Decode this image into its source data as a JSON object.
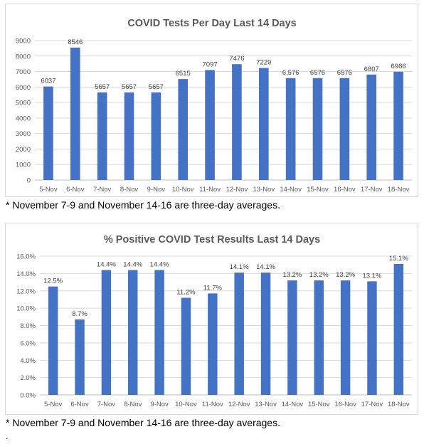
{
  "chart_data": [
    {
      "type": "bar",
      "title": "COVID Tests Per Day Last 14 Days",
      "categories": [
        "5-Nov",
        "6-Nov",
        "7-Nov",
        "8-Nov",
        "9-Nov",
        "10-Nov",
        "11-Nov",
        "12-Nov",
        "13-Nov",
        "14-Nov",
        "15-Nov",
        "16-Nov",
        "17-Nov",
        "18-Nov"
      ],
      "values": [
        6037,
        8546,
        5657,
        5657,
        5657,
        6515,
        7097,
        7476,
        7229,
        6576,
        6576,
        6576,
        6807,
        6986
      ],
      "data_labels": [
        "6037",
        "8546",
        "5657",
        "5657",
        "5657",
        "6515",
        "7097",
        "7476",
        "7229",
        "6,576",
        "6576",
        "6576",
        "6807",
        "6986"
      ],
      "yticks": [
        "0",
        "1000",
        "2000",
        "3000",
        "4000",
        "5000",
        "6000",
        "7000",
        "8000",
        "9000"
      ],
      "ylim": [
        0,
        9000
      ],
      "grid": true,
      "legend": "none",
      "bar_color": "#4472c4",
      "note": "* November 7-9 and November 14-16 are three-day averages."
    },
    {
      "type": "bar",
      "title": "% Positive COVID Test Results Last 14 Days",
      "categories": [
        "5-Nov",
        "6-Nov",
        "7-Nov",
        "8-Nov",
        "9-Nov",
        "10-Nov",
        "11-Nov",
        "12-Nov",
        "13-Nov",
        "14-Nov",
        "15-Nov",
        "16-Nov",
        "17-Nov",
        "18-Nov"
      ],
      "values": [
        12.5,
        8.7,
        14.4,
        14.4,
        14.4,
        11.2,
        11.7,
        14.1,
        14.1,
        13.2,
        13.2,
        13.2,
        13.1,
        15.1
      ],
      "data_labels": [
        "12.5%",
        "8.7%",
        "14.4%",
        "14.4%",
        "14.4%",
        "11.2%",
        "11.7%",
        "14.1%",
        "14.1%",
        "13.2%",
        "13.2%",
        "13.2%",
        "13.1%",
        "15.1%"
      ],
      "yticks": [
        "0.0%",
        "2.0%",
        "4.0%",
        "6.0%",
        "8.0%",
        "10.0%",
        "12.0%",
        "14.0%",
        "16.0%"
      ],
      "ylim": [
        0,
        16
      ],
      "grid": true,
      "legend": "none",
      "bar_color": "#4472c4",
      "note": "* November 7-9 and November 14-16 are three-day averages."
    }
  ],
  "footer_mark": "."
}
